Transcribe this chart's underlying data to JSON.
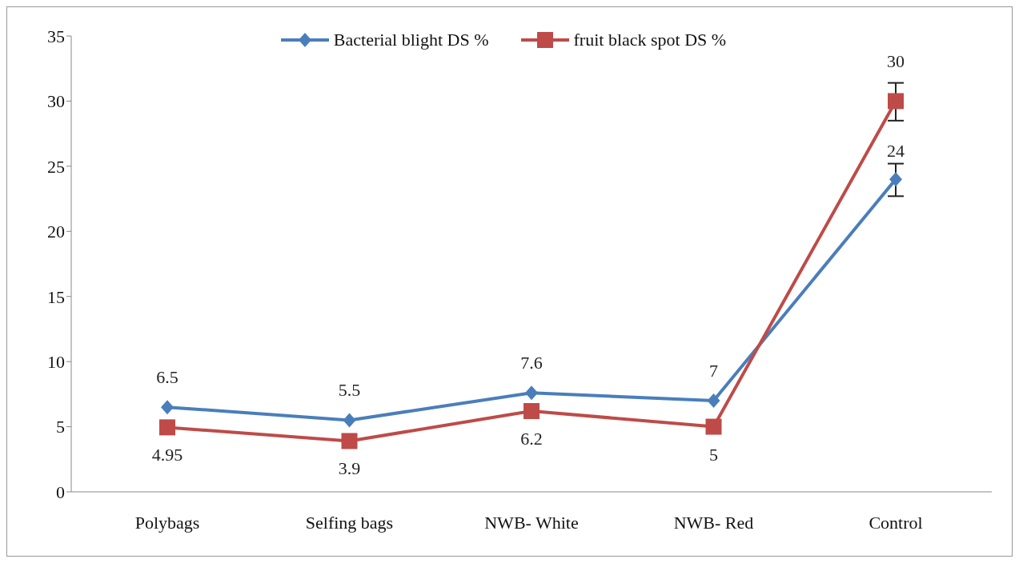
{
  "chart_data": {
    "type": "line",
    "categories": [
      "Polybags",
      "Selfing bags",
      "NWB- White",
      "NWB- Red",
      "Control"
    ],
    "series": [
      {
        "name": "Bacterial blight DS %",
        "color": "#4a7ebb",
        "marker": "diamond",
        "values": [
          6.5,
          5.5,
          7.6,
          7,
          24
        ],
        "errors": [
          null,
          null,
          null,
          null,
          [
            22.7,
            25.2
          ]
        ]
      },
      {
        "name": "fruit black spot DS %",
        "color": "#be4b48",
        "marker": "square",
        "values": [
          4.95,
          3.9,
          6.2,
          5,
          30
        ],
        "errors": [
          null,
          null,
          null,
          null,
          [
            28.5,
            31.4
          ]
        ]
      }
    ],
    "ylim": [
      0,
      35
    ],
    "yticks": [
      0,
      5,
      10,
      15,
      20,
      25,
      30,
      35
    ],
    "grid": false,
    "legend": "top",
    "data_labels": true
  }
}
